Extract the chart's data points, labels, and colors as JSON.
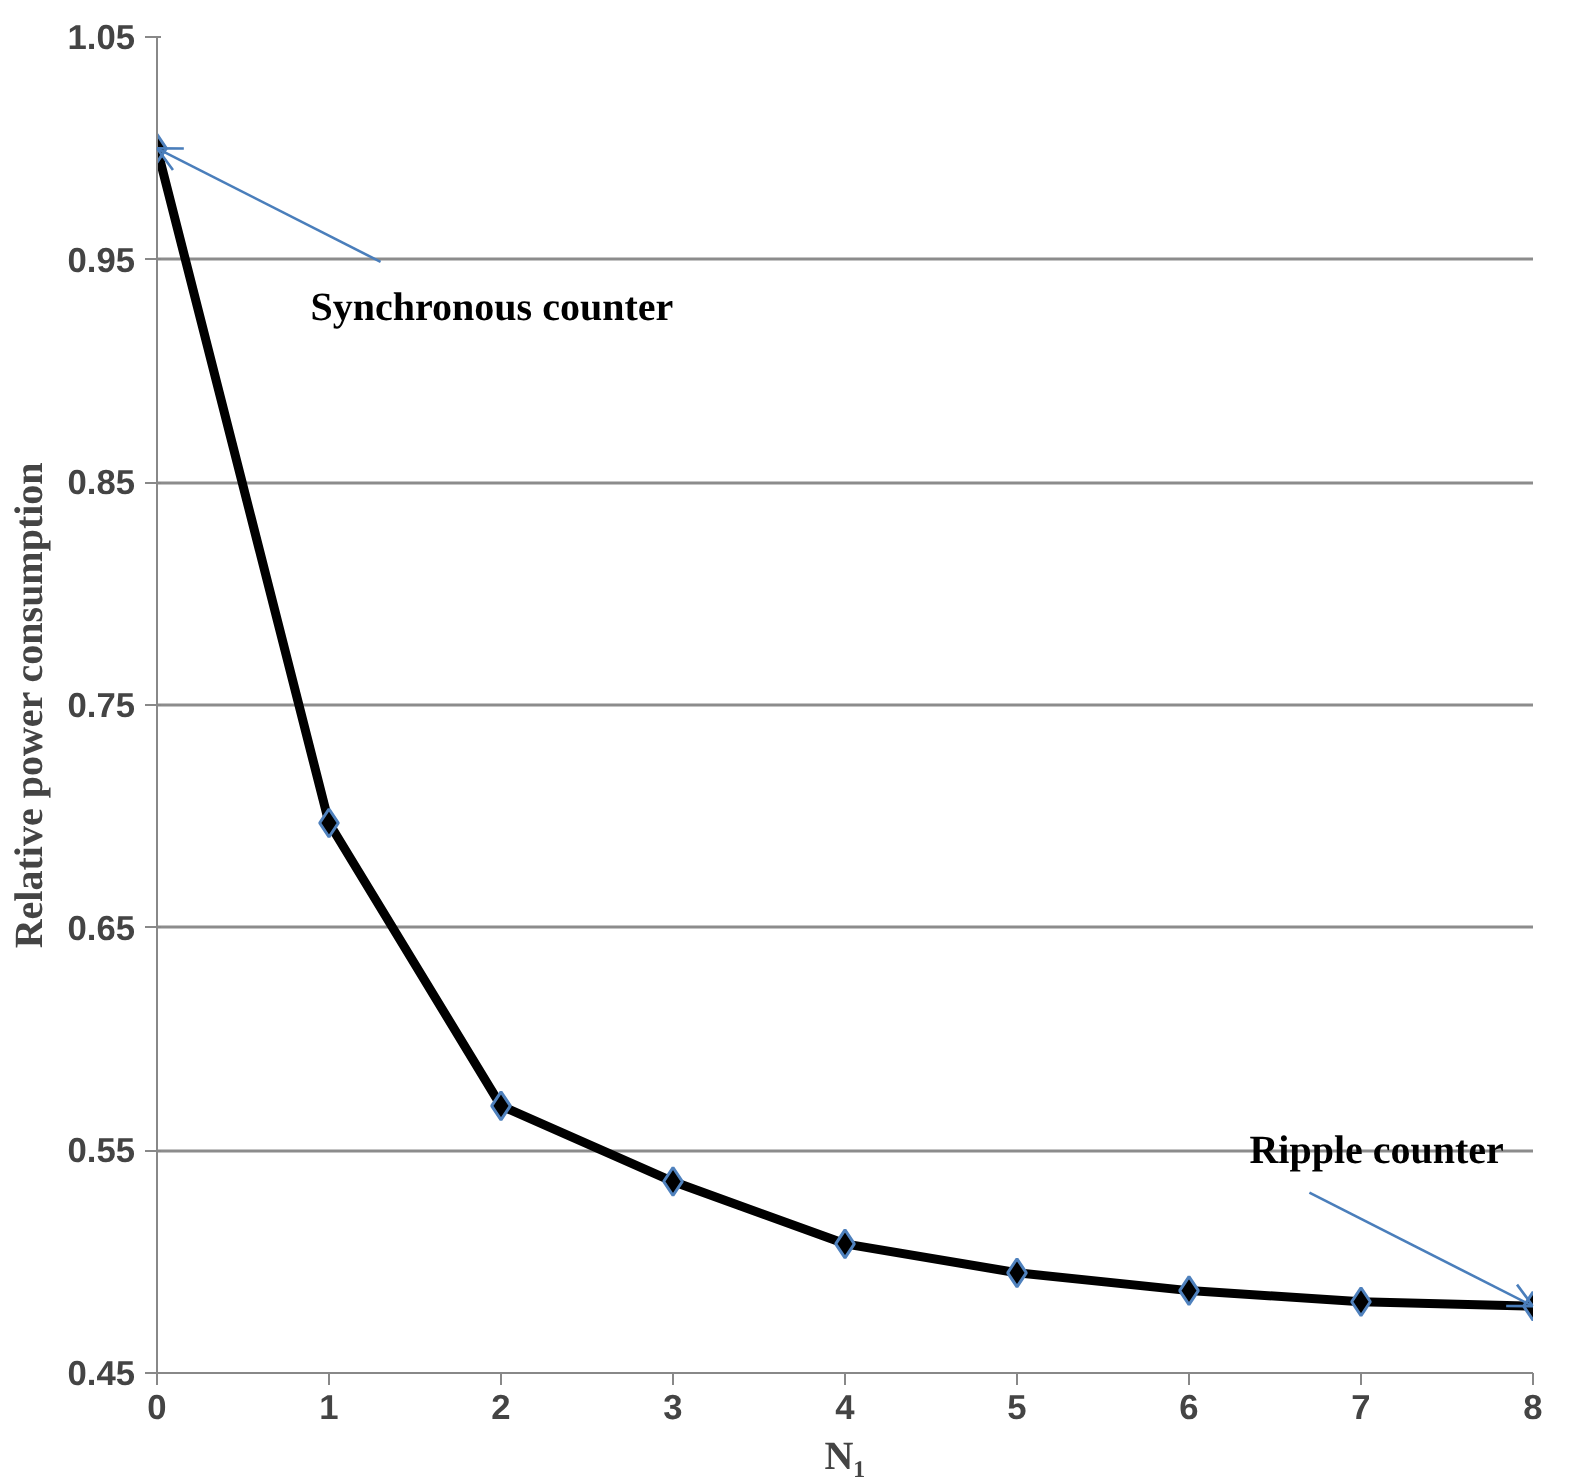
{
  "chart_data": {
    "type": "line",
    "xlabel": "N₁",
    "ylabel": "Relative power consumption",
    "x": [
      0,
      1,
      2,
      3,
      4,
      5,
      6,
      7,
      8
    ],
    "series": [
      {
        "color": "#000000",
        "values": [
          1.0,
          0.697,
          0.57,
          0.536,
          0.508,
          0.495,
          0.487,
          0.482,
          0.48
        ]
      }
    ],
    "xlim": [
      0,
      8
    ],
    "xticks": [
      0,
      1,
      2,
      3,
      4,
      5,
      6,
      7,
      8
    ],
    "ylim": [
      0.45,
      1.05
    ],
    "yticks": [
      0.45,
      0.55,
      0.65,
      0.75,
      0.85,
      0.95,
      1.05
    ],
    "grid": "y",
    "marker": "diamond",
    "line_style": "solid",
    "annotations": [
      {
        "text": "Synchronous counter",
        "x": 0,
        "y": 1.0
      },
      {
        "text": "Ripple counter",
        "x": 8,
        "y": 0.48
      }
    ]
  }
}
